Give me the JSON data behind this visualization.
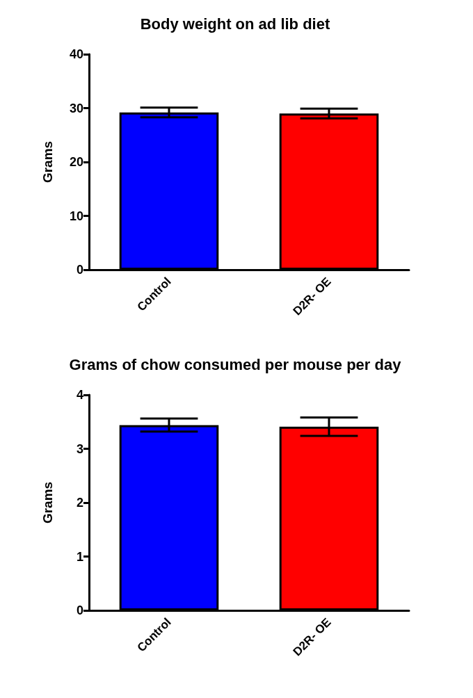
{
  "chart_data": [
    {
      "type": "bar",
      "title": "Body weight on ad lib diet",
      "ylabel": "Grams",
      "categories": [
        "Control",
        "D2R- OE"
      ],
      "values": [
        29.2,
        29.0
      ],
      "colors": [
        "#0000ff",
        "#ff0000"
      ],
      "errors": [
        0.9,
        0.9
      ],
      "ylim": [
        0,
        40
      ],
      "yticks": [
        0,
        10,
        20,
        30,
        40
      ],
      "grid": false
    },
    {
      "type": "bar",
      "title": "Grams of chow consumed per mouse per day",
      "ylabel": "Grams",
      "categories": [
        "Control",
        "D2R- OE"
      ],
      "values": [
        3.44,
        3.41
      ],
      "colors": [
        "#0000ff",
        "#ff0000"
      ],
      "errors": [
        0.12,
        0.17
      ],
      "ylim": [
        0,
        4
      ],
      "yticks": [
        0,
        1,
        2,
        3,
        4
      ],
      "grid": false
    }
  ]
}
